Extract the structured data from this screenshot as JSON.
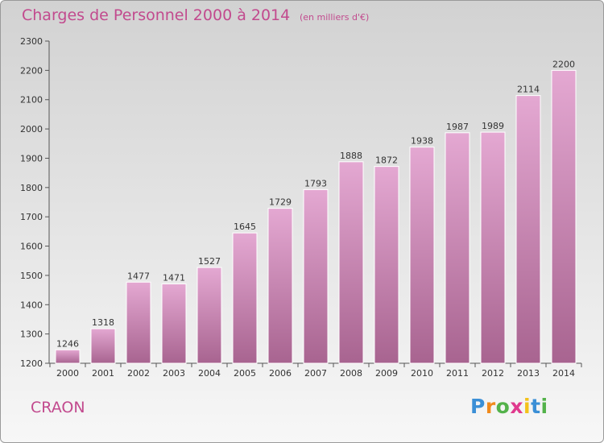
{
  "chart_data": {
    "type": "bar",
    "title": "Charges de Personnel 2000 à 2014",
    "subtitle": "(en milliers d'€)",
    "categories": [
      "2000",
      "2001",
      "2002",
      "2003",
      "2004",
      "2005",
      "2006",
      "2007",
      "2008",
      "2009",
      "2010",
      "2011",
      "2012",
      "2013",
      "2014"
    ],
    "values": [
      1246,
      1318,
      1477,
      1471,
      1527,
      1645,
      1729,
      1793,
      1888,
      1872,
      1938,
      1987,
      1989,
      2114,
      2200
    ],
    "ylim": [
      1200,
      2300
    ],
    "yticks": [
      1200,
      1300,
      1400,
      1500,
      1600,
      1700,
      1800,
      1900,
      2000,
      2100,
      2200,
      2300
    ],
    "grid": false,
    "bar_color_top": "#e4a8d2",
    "bar_color_bottom": "#a86490",
    "axis_color": "#555555"
  },
  "footer": {
    "commune": "CRAON",
    "logo_letters": [
      "P",
      "r",
      "o",
      "x",
      "i",
      "t",
      "i"
    ],
    "logo_colors": [
      "#3b8fd6",
      "#f08a1c",
      "#53b24a",
      "#e03a8e",
      "#f3c21a",
      "#3b8fd6",
      "#53b24a"
    ]
  },
  "text_color": "#c24a8e"
}
